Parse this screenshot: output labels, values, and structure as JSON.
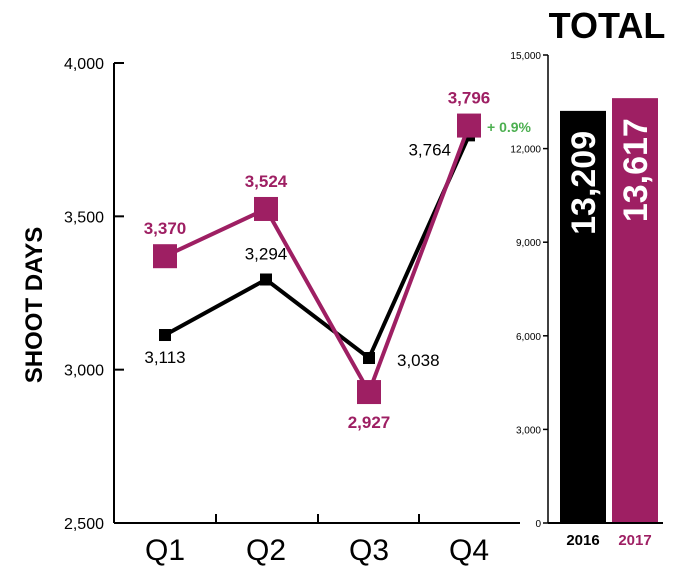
{
  "colors": {
    "series_2016": "#000000",
    "series_2017": "#9e1f63",
    "change": "#4caf50"
  },
  "chart_data": [
    {
      "type": "line",
      "ylabel": "SHOOT DAYS",
      "categories": [
        "Q1",
        "Q2",
        "Q3",
        "Q4"
      ],
      "ylim": [
        2500,
        4000
      ],
      "yticks": [
        2500,
        3000,
        3500,
        4000
      ],
      "ytick_labels": [
        "2,500",
        "3,000",
        "3,500",
        "4,000"
      ],
      "series": [
        {
          "values": [
            3113,
            3294,
            3038,
            3764
          ],
          "labels": [
            "3,113",
            "3,294",
            "3,038",
            "3,764"
          ],
          "color": "#000000",
          "marker": "square-small"
        },
        {
          "values": [
            3370,
            3524,
            2927,
            3796
          ],
          "labels": [
            "3,370",
            "3,524",
            "2,927",
            "3,796"
          ],
          "color": "#9e1f63",
          "marker": "square-large"
        }
      ],
      "annotations": [
        {
          "text": "+ 0.9%",
          "category": "Q4"
        }
      ]
    },
    {
      "type": "bar",
      "title": "TOTAL",
      "categories": [
        "2016",
        "2017"
      ],
      "values": [
        13209,
        13617
      ],
      "value_labels": [
        "13,209",
        "13,617"
      ],
      "colors": [
        "#000000",
        "#9e1f63"
      ],
      "ylim": [
        0,
        15000
      ],
      "yticks": [
        0,
        3000,
        6000,
        9000,
        12000,
        15000
      ],
      "ytick_labels": [
        "0",
        "3,000",
        "6,000",
        "9,000",
        "12,000",
        "15,000"
      ]
    }
  ]
}
